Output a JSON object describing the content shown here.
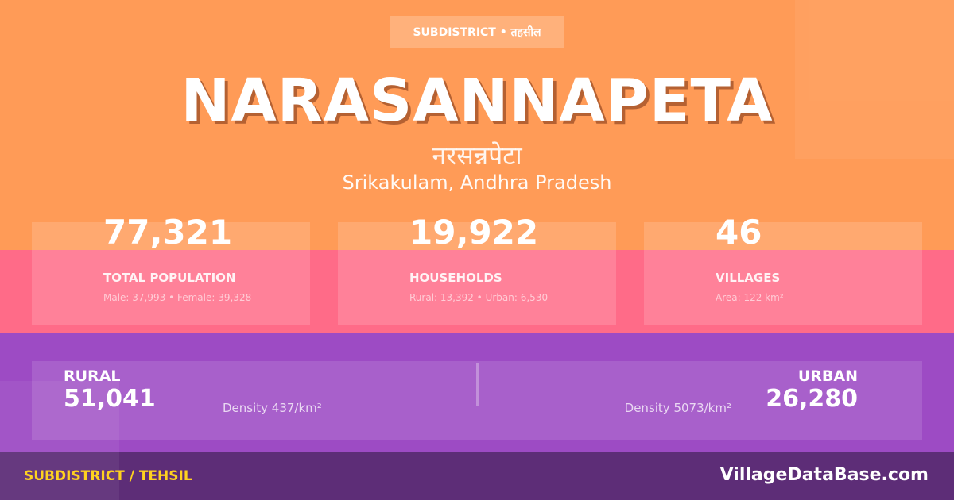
{
  "colors": {
    "top": "#FF9B57",
    "middle": "#FF6B88",
    "lower": "#9D4BC4",
    "footer": "#5D2D77",
    "footer_label": "#FFD21F"
  },
  "badge": "SUBDISTRICT • तहसील",
  "title": "NARASANNAPETA",
  "title_hindi": "नरसन्नपेटा",
  "location": "Srikakulam, Andhra Pradesh",
  "stats": [
    {
      "value": "77,321",
      "label": "TOTAL POPULATION",
      "sub": "Male: 37,993 • Female: 39,328"
    },
    {
      "value": "19,922",
      "label": "HOUSEHOLDS",
      "sub": "Rural: 13,392 • Urban: 6,530"
    },
    {
      "value": "46",
      "label": "VILLAGES",
      "sub": "Area: 122 km²"
    }
  ],
  "rural": {
    "label": "RURAL",
    "value": "51,041",
    "density": "Density 437/km²"
  },
  "urban": {
    "label": "URBAN",
    "value": "26,280",
    "density": "Density 5073/km²"
  },
  "footer": {
    "type": "SUBDISTRICT / TEHSIL",
    "site": "VillageDataBase.com"
  }
}
